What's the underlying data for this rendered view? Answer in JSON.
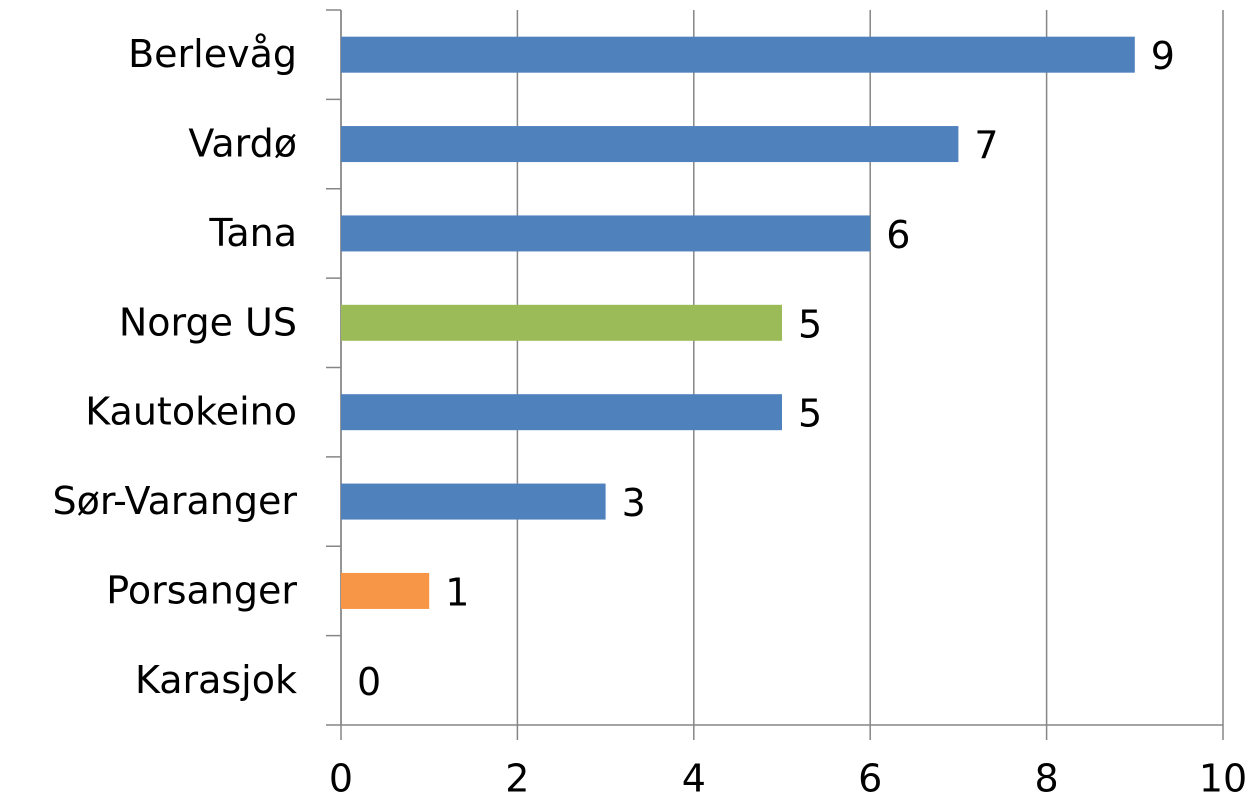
{
  "chart_data": {
    "type": "barh",
    "categories": [
      "Berlevåg",
      "Vardø",
      "Tana",
      "Norge US",
      "Kautokeino",
      "Sør-Varanger",
      "Porsanger",
      "Karasjok"
    ],
    "values": [
      9,
      7,
      6,
      5,
      5,
      3,
      1,
      0
    ],
    "colors": [
      "#4f81bd",
      "#4f81bd",
      "#4f81bd",
      "#9bbb59",
      "#4f81bd",
      "#4f81bd",
      "#f79646",
      "#4f81bd"
    ],
    "xlim": [
      0,
      10
    ],
    "xticks": [
      0,
      2,
      4,
      6,
      8,
      10
    ],
    "grid": true
  }
}
